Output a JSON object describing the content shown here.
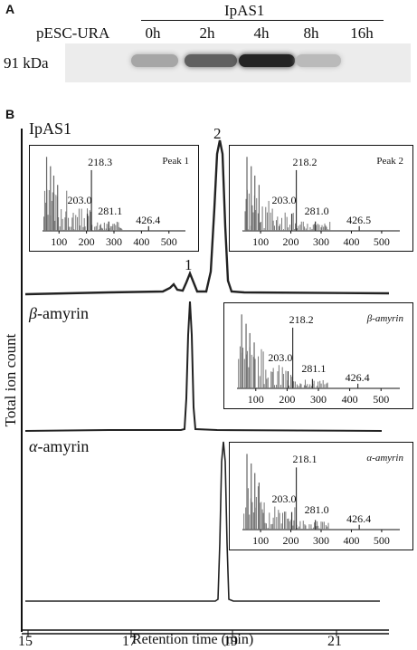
{
  "panel_a": {
    "letter": "A",
    "group_label": "IpAS1",
    "control_label": "pESC-URA",
    "timepoints": [
      "0h",
      "2h",
      "4h",
      "8h",
      "16h"
    ],
    "mw_label": "91 kDa",
    "band_intensity_fraction": [
      0.35,
      0.7,
      1.0,
      0.25,
      0.0
    ]
  },
  "panel_b": {
    "letter": "B",
    "ylabel": "Total ion count",
    "xlabel": "Retention time (min)",
    "xticks": [
      "15",
      "17",
      "19",
      "21"
    ],
    "traces": [
      {
        "label": "IpAS1",
        "peaks": [
          {
            "label": "1",
            "rt": 18.2
          },
          {
            "label": "2",
            "rt": 18.8
          }
        ]
      },
      {
        "label_greek": "β",
        "label_rest": "-amyrin",
        "peak_rt": 18.15
      },
      {
        "label_greek": "α",
        "label_rest": "-amyrin",
        "peak_rt": 18.8
      }
    ],
    "insets": [
      {
        "title": "Peak 1",
        "italic": false,
        "labels": [
          "218.3",
          "203.0",
          "281.1",
          "426.4"
        ],
        "xticks": [
          "100",
          "200",
          "300",
          "400",
          "500"
        ]
      },
      {
        "title": "Peak 2",
        "italic": false,
        "labels": [
          "218.2",
          "203.0",
          "281.0",
          "426.5"
        ],
        "xticks": [
          "100",
          "200",
          "300",
          "400",
          "500"
        ]
      },
      {
        "title": "β-amyrin",
        "italic": true,
        "labels": [
          "218.2",
          "203.0",
          "281.1",
          "426.4"
        ],
        "xticks": [
          "100",
          "200",
          "300",
          "400",
          "500"
        ]
      },
      {
        "title": "α-amyrin",
        "italic": true,
        "labels": [
          "218.1",
          "203.0",
          "281.0",
          "426.4"
        ],
        "xticks": [
          "100",
          "200",
          "300",
          "400",
          "500"
        ]
      }
    ]
  }
}
